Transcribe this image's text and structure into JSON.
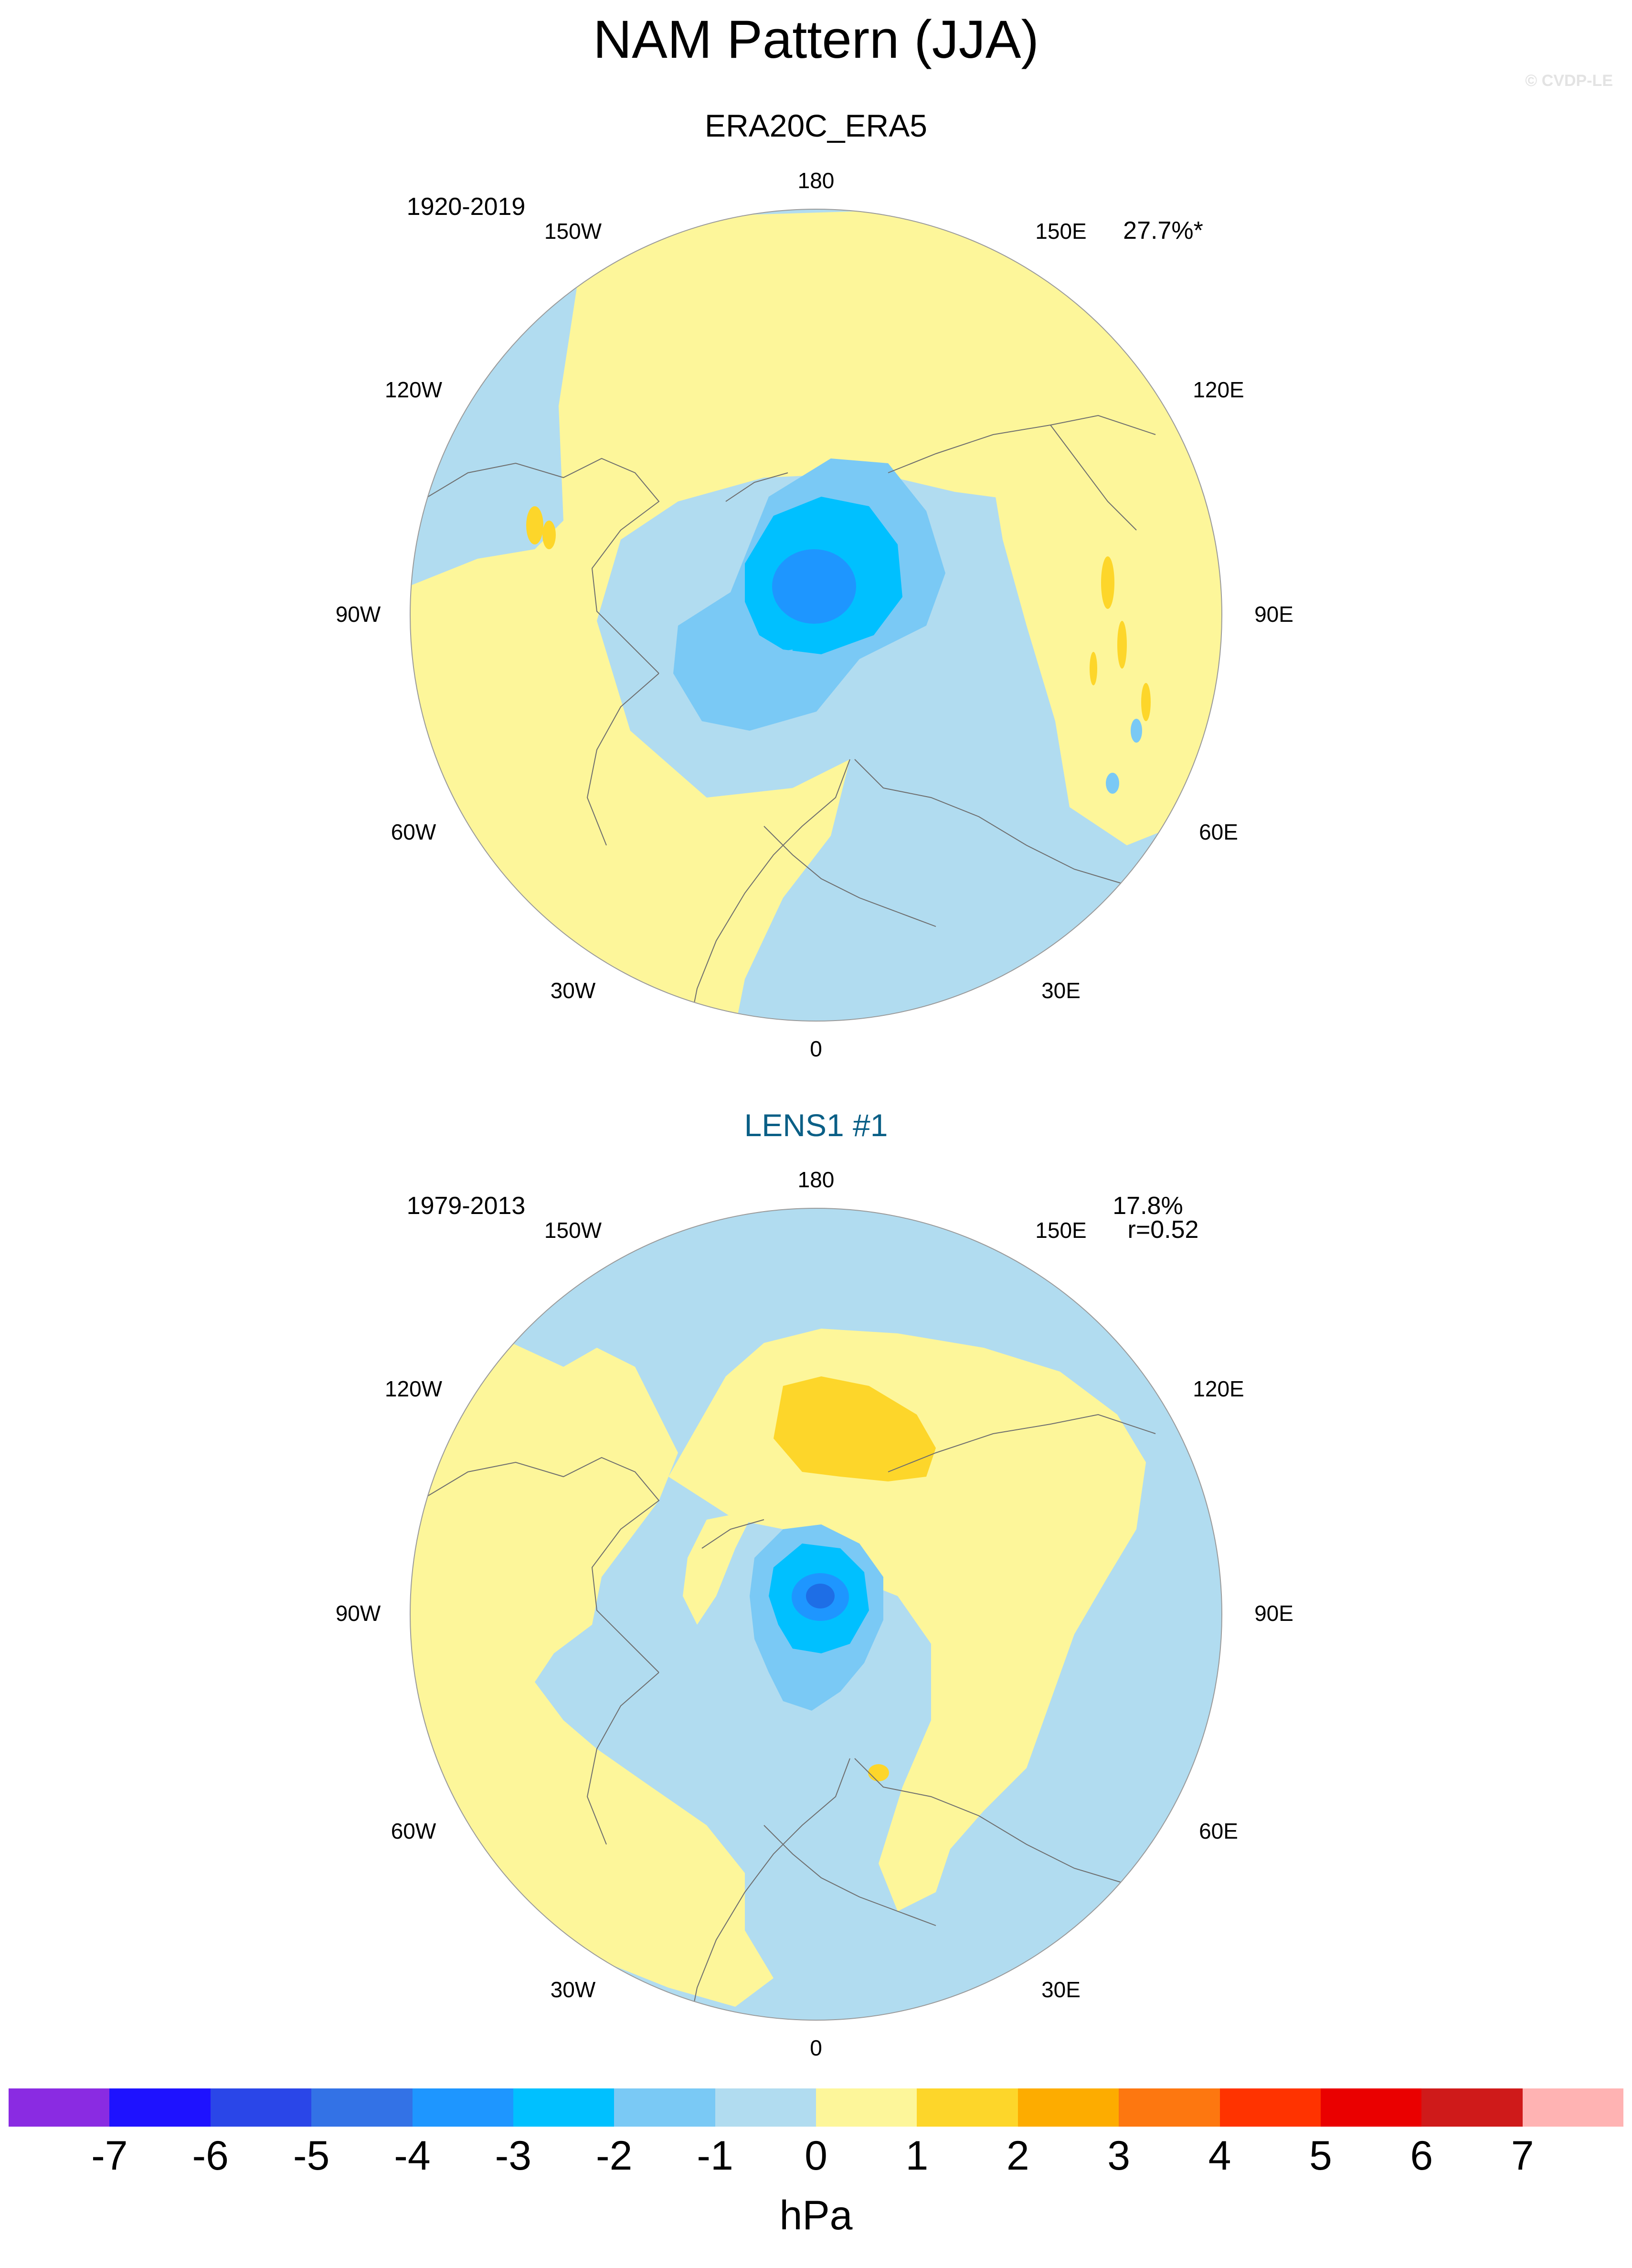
{
  "title": "NAM Pattern (JJA)",
  "credit": "© CVDP-LE",
  "colors": {
    "ocean_bg": "#b1dcf0",
    "coast": "#6e6e6e"
  },
  "lon_labels": {
    "top": "180",
    "top_left": "150W",
    "top_right": "150E",
    "upper_left": "120W",
    "upper_right": "120E",
    "left": "90W",
    "right": "90E",
    "lower_left": "60W",
    "lower_right": "60E",
    "bottom_left": "30W",
    "bottom_right": "30E",
    "bottom": "0"
  },
  "panels": [
    {
      "title": "ERA20C_ERA5",
      "period": "1920-2019",
      "stat_line1": "27.7%*",
      "stat_line2": ""
    },
    {
      "title": "LENS1 #1",
      "period": "1979-2013",
      "stat_line1": "17.8%",
      "stat_line2": "r=0.52"
    }
  ],
  "colorbar": {
    "colors": [
      "#8a2be2",
      "#1e12ff",
      "#2a46e8",
      "#3372e6",
      "#1e96ff",
      "#00c0ff",
      "#7ac9f5",
      "#b1dcf0",
      "#fdf69a",
      "#fdd62a",
      "#fdac00",
      "#fd7710",
      "#ff3300",
      "#ea0000",
      "#cf1a1a",
      "#ffb3b3"
    ],
    "tick_labels": [
      "-7",
      "-6",
      "-5",
      "-4",
      "-3",
      "-2",
      "-1",
      "0",
      "1",
      "2",
      "3",
      "4",
      "5",
      "6",
      "7"
    ],
    "unit": "hPa"
  }
}
